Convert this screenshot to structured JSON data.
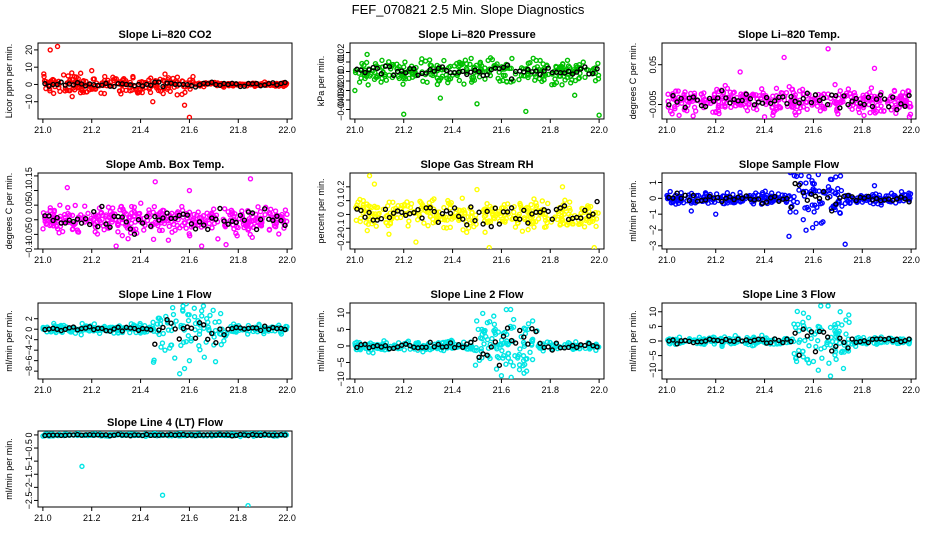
{
  "figure_title": "FEF_070821  2.5 Min. Slope Diagnostics",
  "colors": {
    "black": "#000000"
  },
  "chart_data": [
    {
      "type": "scatter",
      "title": "Slope Li–820 CO2",
      "xlabel": "",
      "ylabel": "Licor ppm per min.",
      "color": "#ff0000",
      "xlim": [
        20.98,
        22.02
      ],
      "ylim": [
        -20,
        24
      ],
      "xticks": [
        "21.0",
        "21.2",
        "21.4",
        "21.6",
        "21.8",
        "22.0"
      ],
      "yticks": [
        -10,
        0,
        10,
        20
      ],
      "seed": 11,
      "n": 300,
      "noise": 4,
      "late_noise": 0.8,
      "cut": 21.62,
      "black_amp": 1.0,
      "outliers": [
        [
          21.03,
          20
        ],
        [
          21.06,
          22
        ],
        [
          21.07,
          -4
        ],
        [
          21.12,
          -7
        ],
        [
          21.2,
          8
        ],
        [
          21.45,
          -10
        ],
        [
          21.58,
          -12
        ],
        [
          21.6,
          -19
        ],
        [
          21.5,
          6
        ],
        [
          21.55,
          -6
        ]
      ]
    },
    {
      "type": "scatter",
      "title": "Slope Li–820 Pressure",
      "xlabel": "",
      "ylabel": "kPa per min.",
      "color": "#00c000",
      "xlim": [
        20.98,
        22.02
      ],
      "ylim": [
        -0.05,
        0.03
      ],
      "xticks": [
        "21.0",
        "21.2",
        "21.4",
        "21.6",
        "21.8",
        "22.0"
      ],
      "yticks": [
        -0.04,
        -0.03,
        -0.02,
        -0.01,
        0.0,
        0.01,
        0.02
      ],
      "seed": 22,
      "n": 300,
      "noise": 0.009,
      "late_noise": 0.009,
      "cut": 22.5,
      "black_amp": 0.004,
      "outliers": [
        [
          21.2,
          -0.045
        ],
        [
          21.5,
          -0.034
        ],
        [
          21.7,
          -0.042
        ],
        [
          22.0,
          -0.046
        ],
        [
          21.0,
          -0.02
        ],
        [
          21.35,
          -0.028
        ],
        [
          21.9,
          -0.025
        ],
        [
          21.05,
          0.018
        ]
      ]
    },
    {
      "type": "scatter",
      "title": "Slope Li–820 Temp.",
      "xlabel": "",
      "ylabel": "degrees C per min.",
      "color": "#ff00ff",
      "xlim": [
        20.98,
        22.02
      ],
      "ylim": [
        -0.025,
        0.08
      ],
      "xticks": [
        "21.0",
        "21.2",
        "21.4",
        "21.6",
        "21.8",
        "22.0"
      ],
      "yticks": [
        -0.005,
        0.05
      ],
      "seed": 33,
      "n": 360,
      "noise": 0.012,
      "late_noise": 0.012,
      "cut": 22.5,
      "black_amp": 0.008,
      "outliers": [
        [
          21.05,
          -0.02
        ],
        [
          21.2,
          -0.015
        ],
        [
          21.48,
          0.06
        ],
        [
          21.4,
          -0.022
        ],
        [
          21.7,
          -0.018
        ],
        [
          21.85,
          0.045
        ],
        [
          21.66,
          0.072
        ],
        [
          21.3,
          0.04
        ]
      ]
    },
    {
      "type": "scatter",
      "title": "Slope Amb. Box Temp.",
      "xlabel": "",
      "ylabel": "degrees C per min.",
      "color": "#ff00ff",
      "xlim": [
        20.98,
        22.02
      ],
      "ylim": [
        -0.1,
        0.16
      ],
      "xticks": [
        "21.0",
        "21.2",
        "21.4",
        "21.6",
        "21.8",
        "22.0"
      ],
      "yticks": [
        -0.1,
        -0.05,
        0.0,
        0.05,
        0.1,
        0.15
      ],
      "seed": 44,
      "n": 360,
      "noise": 0.035,
      "late_noise": 0.035,
      "cut": 22.5,
      "black_amp": 0.025,
      "outliers": [
        [
          21.46,
          0.13
        ],
        [
          21.6,
          0.1
        ],
        [
          21.85,
          0.14
        ],
        [
          21.65,
          -0.09
        ],
        [
          21.75,
          -0.085
        ],
        [
          21.1,
          0.11
        ],
        [
          21.3,
          -0.09
        ]
      ]
    },
    {
      "type": "scatter",
      "title": "Slope Gas Stream RH",
      "xlabel": "",
      "ylabel": "percent per min.",
      "color": "#ffff00",
      "xlim": [
        20.98,
        22.02
      ],
      "ylim": [
        -0.25,
        0.3
      ],
      "xticks": [
        "21.0",
        "21.2",
        "21.4",
        "21.6",
        "21.8",
        "22.0"
      ],
      "yticks": [
        -0.2,
        -0.1,
        0.0,
        0.1,
        0.2
      ],
      "seed": 55,
      "n": 340,
      "noise": 0.07,
      "late_noise": 0.07,
      "cut": 22.5,
      "black_amp": 0.06,
      "outliers": [
        [
          21.06,
          0.28
        ],
        [
          21.08,
          0.22
        ],
        [
          21.25,
          -0.2
        ],
        [
          21.55,
          -0.24
        ],
        [
          21.85,
          0.2
        ],
        [
          21.98,
          -0.24
        ],
        [
          21.5,
          0.18
        ]
      ]
    },
    {
      "type": "scatter",
      "title": "Slope Sample Flow",
      "xlabel": "",
      "ylabel": "ml/min per min.",
      "color": "#0000ff",
      "xlim": [
        20.98,
        22.02
      ],
      "ylim": [
        -3.2,
        1.6
      ],
      "xticks": [
        "21.0",
        "21.2",
        "21.4",
        "21.6",
        "21.8",
        "22.0"
      ],
      "yticks": [
        -3,
        -2,
        -1,
        0,
        1
      ],
      "seed": 66,
      "n": 320,
      "noise": 0.25,
      "late_noise": 0.25,
      "cut": 22.5,
      "black_amp": 0.2,
      "burst": [
        21.5,
        21.72,
        1.0
      ],
      "outliers": [
        [
          21.62,
          1.5
        ],
        [
          21.73,
          -2.9
        ],
        [
          21.5,
          -2.4
        ],
        [
          21.2,
          -1.0
        ],
        [
          21.85,
          0.8
        ],
        [
          21.1,
          -0.8
        ],
        [
          21.67,
          1.2
        ]
      ]
    },
    {
      "type": "scatter",
      "title": "Slope Line 1 Flow",
      "xlabel": "",
      "ylabel": "ml/min per min.",
      "color": "#00e5e5",
      "xlim": [
        20.98,
        22.02
      ],
      "ylim": [
        -9.5,
        5
      ],
      "xticks": [
        "21.0",
        "21.2",
        "21.4",
        "21.6",
        "21.8",
        "22.0"
      ],
      "yticks": [
        -8,
        -6,
        -4,
        -2,
        0,
        2
      ],
      "seed": 77,
      "n": 300,
      "noise": 0.6,
      "late_noise": 0.6,
      "cut": 22.5,
      "black_amp": 0.35,
      "burst": [
        21.45,
        21.75,
        3.0
      ],
      "outliers": [
        [
          21.56,
          -8.5
        ],
        [
          21.58,
          -7.5
        ],
        [
          21.6,
          -6
        ],
        [
          21.62,
          4
        ],
        [
          21.65,
          3.5
        ],
        [
          21.5,
          -4
        ],
        [
          21.7,
          -3
        ],
        [
          21.54,
          -5.5
        ]
      ]
    },
    {
      "type": "scatter",
      "title": "Slope Line 2 Flow",
      "xlabel": "",
      "ylabel": "ml/min per min.",
      "color": "#00e5e5",
      "xlim": [
        20.98,
        22.02
      ],
      "ylim": [
        -10,
        13
      ],
      "xticks": [
        "21.0",
        "21.2",
        "21.4",
        "21.6",
        "21.8",
        "22.0"
      ],
      "yticks": [
        -10,
        -5,
        0,
        5,
        10
      ],
      "seed": 88,
      "n": 300,
      "noise": 1.0,
      "late_noise": 1.0,
      "cut": 22.5,
      "black_amp": 0.8,
      "burst": [
        21.48,
        21.75,
        5.0
      ],
      "outliers": [
        [
          21.62,
          11
        ],
        [
          21.65,
          8
        ],
        [
          21.6,
          -9
        ],
        [
          21.64,
          -9.5
        ],
        [
          21.58,
          -7
        ],
        [
          21.52,
          5
        ],
        [
          21.7,
          -4
        ]
      ]
    },
    {
      "type": "scatter",
      "title": "Slope Line 3 Flow",
      "xlabel": "",
      "ylabel": "ml/min per min.",
      "color": "#00e5e5",
      "xlim": [
        20.98,
        22.02
      ],
      "ylim": [
        -13,
        13
      ],
      "xticks": [
        "21.0",
        "21.2",
        "21.4",
        "21.6",
        "21.8",
        "22.0"
      ],
      "yticks": [
        -10,
        -5,
        0,
        5,
        10
      ],
      "seed": 99,
      "n": 300,
      "noise": 1.0,
      "late_noise": 1.0,
      "cut": 22.5,
      "black_amp": 0.8,
      "burst": [
        21.52,
        21.75,
        5.0
      ],
      "outliers": [
        [
          21.63,
          12
        ],
        [
          21.66,
          12
        ],
        [
          21.62,
          -10
        ],
        [
          21.67,
          -12
        ],
        [
          21.58,
          8
        ],
        [
          21.6,
          -7
        ],
        [
          21.7,
          6
        ]
      ]
    },
    {
      "type": "scatter",
      "title": "Slope Line 4 (LT) Flow",
      "xlabel": "",
      "ylabel": "ml/min per min.",
      "color": "#00e5e5",
      "xlim": [
        20.98,
        22.02
      ],
      "ylim": [
        -2.75,
        0.15
      ],
      "xticks": [
        "21.0",
        "21.2",
        "21.4",
        "21.6",
        "21.8",
        "22.0"
      ],
      "yticks": [
        -2.5,
        -2.0,
        -1.5,
        -1.0,
        -0.5,
        0.0
      ],
      "seed": 111,
      "n": 320,
      "noise": 0.03,
      "late_noise": 0.03,
      "cut": 22.5,
      "black_amp": 0.02,
      "outliers": [
        [
          21.16,
          -1.2
        ],
        [
          21.49,
          -2.3
        ],
        [
          21.84,
          -2.7
        ]
      ]
    }
  ]
}
